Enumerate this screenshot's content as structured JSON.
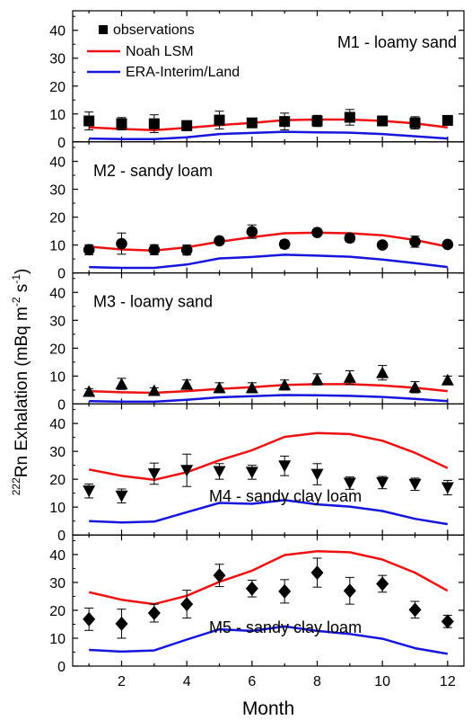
{
  "figure": {
    "ylabel_iso": "222",
    "ylabel_main": "Rn Exhalation (mBq m",
    "ylabel_sup1": "-2",
    "ylabel_mid": " s",
    "ylabel_sup2": "-1",
    "ylabel_end": ")",
    "xlabel": "Month",
    "x_ticks": [
      2,
      4,
      6,
      8,
      10,
      12
    ],
    "x_range": [
      0.5,
      12.5
    ],
    "y_ticks": [
      0,
      10,
      20,
      30,
      40
    ],
    "y_range": [
      0,
      47
    ]
  },
  "legend": {
    "placement": "top-left of first panel",
    "items": [
      {
        "label": "observations",
        "kind": "marker-square"
      },
      {
        "label": "Noah LSM",
        "kind": "line",
        "color": "#ee1111"
      },
      {
        "label": "ERA-Interim/Land",
        "kind": "line",
        "color": "#1515dd"
      }
    ]
  },
  "colors": {
    "noah": "#ee1111",
    "era": "#1515dd",
    "obs": "#000000"
  },
  "chart_data": [
    {
      "type": "line",
      "panel_label": "M1 - loamy sand",
      "label_position": "top-right",
      "marker": "square",
      "x": [
        1,
        2,
        3,
        4,
        5,
        6,
        7,
        8,
        9,
        10,
        11,
        12
      ],
      "series": [
        {
          "name": "observations",
          "values": [
            7.5,
            6.5,
            6.5,
            5.8,
            7.8,
            6.8,
            7.3,
            7.5,
            8.8,
            7.5,
            6.8,
            7.7
          ],
          "errors": [
            3.2,
            2.2,
            3.2,
            1.8,
            3.2,
            1.0,
            3.0,
            2.0,
            2.8,
            1.5,
            2.2,
            1.0
          ]
        },
        {
          "name": "Noah LSM",
          "values": [
            5.2,
            4.6,
            4.2,
            5.0,
            6.0,
            6.8,
            7.8,
            8.0,
            8.0,
            7.5,
            6.6,
            5.2
          ]
        },
        {
          "name": "ERA-Interim/Land",
          "values": [
            1.2,
            1.0,
            1.0,
            1.6,
            2.8,
            3.2,
            3.6,
            3.4,
            3.3,
            2.8,
            2.0,
            1.2
          ]
        }
      ],
      "ylim": [
        0,
        47
      ]
    },
    {
      "type": "line",
      "panel_label": "M2 - sandy loam",
      "label_position": "top-left",
      "marker": "circle",
      "x": [
        1,
        2,
        3,
        4,
        5,
        6,
        7,
        8,
        9,
        10,
        11,
        12
      ],
      "series": [
        {
          "name": "observations",
          "values": [
            8.3,
            10.5,
            8.3,
            8.2,
            11.5,
            14.8,
            10.3,
            14.5,
            12.5,
            10.0,
            11.2,
            10.2
          ],
          "errors": [
            1.8,
            3.8,
            1.8,
            1.8,
            1.0,
            2.4,
            1.4,
            1.0,
            1.4,
            0.6,
            2.0,
            0.6
          ]
        },
        {
          "name": "Noah LSM",
          "values": [
            9.4,
            8.4,
            8.0,
            9.2,
            11.2,
            12.8,
            14.2,
            14.4,
            14.2,
            13.5,
            11.8,
            9.4
          ]
        },
        {
          "name": "ERA-Interim/Land",
          "values": [
            2.1,
            1.8,
            1.8,
            3.0,
            5.2,
            5.7,
            6.5,
            6.2,
            5.8,
            4.8,
            3.5,
            2.1
          ]
        }
      ],
      "ylim": [
        0,
        47
      ]
    },
    {
      "type": "line",
      "panel_label": "M3 - loamy sand",
      "label_position": "top-left",
      "marker": "triangle-up",
      "x": [
        1,
        2,
        3,
        4,
        5,
        6,
        7,
        8,
        9,
        10,
        11,
        12
      ],
      "series": [
        {
          "name": "observations",
          "values": [
            4.5,
            7.2,
            4.8,
            7.0,
            5.8,
            5.8,
            6.8,
            8.8,
            9.5,
            11.2,
            6.0,
            8.6
          ],
          "errors": [
            1.0,
            2.0,
            1.0,
            1.6,
            1.8,
            1.8,
            1.8,
            2.0,
            2.4,
            2.6,
            2.0,
            1.4
          ]
        },
        {
          "name": "Noah LSM",
          "values": [
            4.6,
            4.2,
            4.0,
            4.6,
            5.4,
            6.0,
            6.8,
            7.1,
            7.1,
            6.6,
            5.8,
            4.6
          ]
        },
        {
          "name": "ERA-Interim/Land",
          "values": [
            1.0,
            0.8,
            0.8,
            1.5,
            2.4,
            2.8,
            3.2,
            3.1,
            2.9,
            2.5,
            1.8,
            1.0
          ]
        }
      ],
      "ylim": [
        0,
        47
      ]
    },
    {
      "type": "line",
      "panel_label": "M4 - sandy clay loam",
      "label_position": "bottom-center",
      "marker": "triangle-down",
      "x": [
        1,
        2,
        3,
        4,
        5,
        6,
        7,
        8,
        9,
        10,
        11,
        12
      ],
      "series": [
        {
          "name": "observations",
          "values": [
            15.8,
            14.0,
            22.0,
            23.2,
            22.8,
            22.5,
            24.8,
            21.8,
            18.6,
            18.8,
            18.2,
            17.0
          ],
          "errors": [
            2.5,
            2.5,
            3.8,
            5.8,
            2.8,
            2.5,
            3.5,
            3.8,
            2.2,
            2.2,
            2.2,
            2.6
          ]
        },
        {
          "name": "Noah LSM",
          "values": [
            23.5,
            21.2,
            19.8,
            22.5,
            26.8,
            30.4,
            35.2,
            36.6,
            36.2,
            33.8,
            29.5,
            24.0
          ]
        },
        {
          "name": "ERA-Interim/Land",
          "values": [
            5.0,
            4.5,
            4.8,
            8.2,
            11.5,
            11.2,
            12.5,
            11.0,
            10.2,
            8.6,
            5.8,
            3.9
          ]
        }
      ],
      "ylim": [
        0,
        47
      ]
    },
    {
      "type": "line",
      "panel_label": "M5 - sandy clay loam",
      "label_position": "bottom-center",
      "marker": "diamond",
      "x": [
        1,
        2,
        3,
        4,
        5,
        6,
        7,
        8,
        9,
        10,
        11,
        12
      ],
      "series": [
        {
          "name": "observations",
          "values": [
            16.8,
            15.2,
            19.0,
            22.2,
            32.5,
            27.8,
            26.8,
            33.5,
            27.0,
            29.5,
            20.2,
            16.0
          ],
          "errors": [
            4.0,
            5.2,
            3.2,
            5.0,
            4.0,
            3.0,
            4.2,
            5.2,
            4.8,
            3.0,
            3.0,
            2.2
          ]
        },
        {
          "name": "Noah LSM",
          "values": [
            26.5,
            23.8,
            22.2,
            25.2,
            30.2,
            34.2,
            39.8,
            41.2,
            40.8,
            38.2,
            33.5,
            27.0
          ]
        },
        {
          "name": "ERA-Interim/Land",
          "values": [
            5.8,
            5.2,
            5.6,
            9.5,
            13.2,
            12.6,
            14.2,
            12.6,
            11.5,
            9.8,
            6.4,
            4.4
          ]
        }
      ],
      "ylim": [
        0,
        47
      ]
    }
  ]
}
